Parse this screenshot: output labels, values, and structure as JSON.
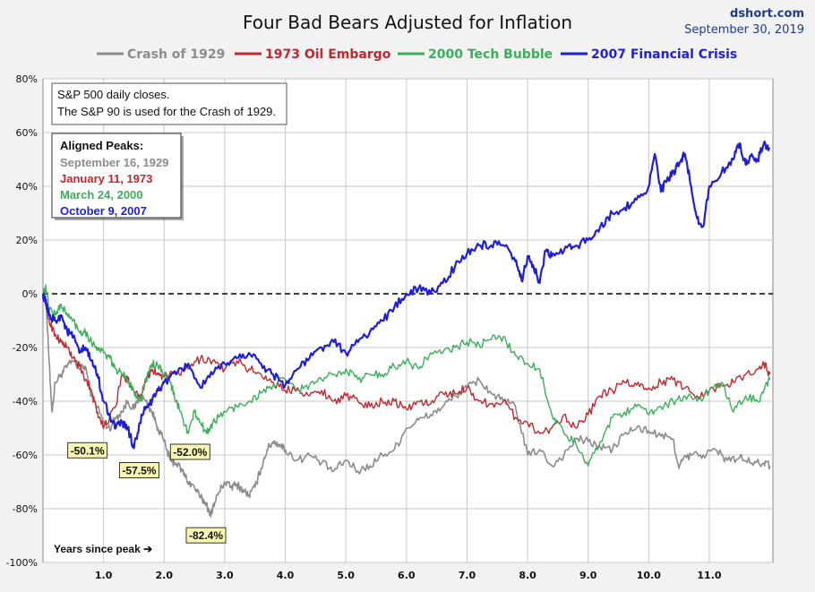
{
  "source": {
    "site": "dshort.com",
    "date": "September 30, 2019"
  },
  "chart_data": {
    "type": "line",
    "title": "Four Bad Bears Adjusted for Inflation",
    "xlabel": "Years since peak ➔",
    "ylabel": "",
    "xlim": [
      0,
      12.05
    ],
    "ylim": [
      -100,
      80
    ],
    "grid": true,
    "legend_position": "top",
    "y_ticks": [
      80,
      60,
      40,
      20,
      0,
      -20,
      -40,
      -60,
      -80,
      -100
    ],
    "y_tick_labels": [
      "80%",
      "60%",
      "40%",
      "20%",
      "0%",
      "-20%",
      "-40%",
      "-60%",
      "-80%",
      "-100%"
    ],
    "x_ticks": [
      1,
      2,
      3,
      4,
      5,
      6,
      7,
      8,
      9,
      10,
      11
    ],
    "x_tick_labels": [
      "1.0",
      "2.0",
      "3.0",
      "4.0",
      "5.0",
      "6.0",
      "7.0",
      "8.0",
      "9.0",
      "10.0",
      "11.0"
    ],
    "note_lines": [
      "S&P 500 daily closes.",
      "The S&P 90 is used for the Crash of 1929."
    ],
    "aligned_peaks": {
      "heading": "Aligned Peaks:",
      "items": [
        {
          "label": "September 16, 1929",
          "color": "#8c8c8c"
        },
        {
          "label": "January 11, 1973",
          "color": "#c0282d"
        },
        {
          "label": "March 24, 2000",
          "color": "#3cae5a"
        },
        {
          "label": "October 9, 2007",
          "color": "#1f1fd6"
        }
      ]
    },
    "series": [
      {
        "name": "Crash of 1929",
        "color": "#8c8c8c",
        "width": 1.6,
        "x": [
          0,
          0.05,
          0.1,
          0.15,
          0.2,
          0.3,
          0.4,
          0.5,
          0.6,
          0.7,
          0.8,
          0.9,
          1.0,
          1.1,
          1.2,
          1.3,
          1.4,
          1.5,
          1.6,
          1.7,
          1.8,
          1.9,
          2.0,
          2.1,
          2.2,
          2.3,
          2.4,
          2.5,
          2.6,
          2.7,
          2.75,
          2.8,
          2.9,
          3.0,
          3.1,
          3.2,
          3.3,
          3.4,
          3.5,
          3.6,
          3.7,
          3.8,
          3.9,
          4.0,
          4.2,
          4.4,
          4.6,
          4.8,
          5.0,
          5.2,
          5.4,
          5.6,
          5.8,
          6.0,
          6.2,
          6.4,
          6.6,
          6.8,
          7.0,
          7.2,
          7.4,
          7.6,
          7.8,
          8.0,
          8.2,
          8.4,
          8.6,
          8.8,
          9.0,
          9.2,
          9.4,
          9.6,
          9.8,
          10.0,
          10.2,
          10.4,
          10.5,
          10.55,
          10.7,
          10.9,
          11.1,
          11.3,
          11.5,
          11.7,
          11.9,
          12.0
        ],
        "y": [
          0,
          -2,
          -25,
          -44,
          -33,
          -30,
          -27,
          -25,
          -28,
          -27,
          -38,
          -42,
          -48,
          -50,
          -46,
          -44,
          -40,
          -43,
          -38,
          -40,
          -44,
          -50,
          -55,
          -62,
          -63,
          -66,
          -70,
          -72,
          -76,
          -78,
          -82.4,
          -80,
          -74,
          -70,
          -72,
          -71,
          -73,
          -75,
          -72,
          -65,
          -58,
          -55,
          -56,
          -58,
          -62,
          -60,
          -63,
          -66,
          -62,
          -66,
          -64,
          -60,
          -58,
          -50,
          -47,
          -45,
          -42,
          -38,
          -35,
          -32,
          -37,
          -40,
          -42,
          -60,
          -58,
          -64,
          -60,
          -54,
          -55,
          -57,
          -58,
          -52,
          -50,
          -51,
          -53,
          -54,
          -65,
          -62,
          -60,
          -60,
          -58,
          -62,
          -61,
          -63,
          -63,
          -64
        ]
      },
      {
        "name": "1973 Oil Embargo",
        "color": "#c0282d",
        "width": 1.4,
        "x": [
          0,
          0.05,
          0.1,
          0.2,
          0.3,
          0.4,
          0.5,
          0.6,
          0.7,
          0.8,
          0.9,
          1.0,
          1.1,
          1.2,
          1.3,
          1.4,
          1.5,
          1.6,
          1.7,
          1.8,
          1.9,
          2.0,
          2.2,
          2.4,
          2.6,
          2.8,
          3.0,
          3.2,
          3.4,
          3.6,
          3.8,
          4.0,
          4.2,
          4.4,
          4.6,
          4.8,
          5.0,
          5.2,
          5.4,
          5.6,
          5.8,
          6.0,
          6.2,
          6.4,
          6.6,
          6.8,
          7.0,
          7.2,
          7.4,
          7.6,
          7.8,
          8.0,
          8.2,
          8.4,
          8.6,
          8.8,
          9.0,
          9.2,
          9.4,
          9.6,
          9.8,
          10.0,
          10.2,
          10.4,
          10.6,
          10.8,
          11.0,
          11.2,
          11.4,
          11.6,
          11.8,
          11.9,
          12.0
        ],
        "y": [
          0,
          -3,
          -10,
          -15,
          -18,
          -20,
          -24,
          -27,
          -32,
          -36,
          -44,
          -50.1,
          -46,
          -42,
          -30,
          -32,
          -36,
          -38,
          -32,
          -28,
          -30,
          -31,
          -30,
          -28,
          -24,
          -25,
          -28,
          -25,
          -28,
          -30,
          -33,
          -36,
          -35,
          -38,
          -36,
          -40,
          -38,
          -40,
          -42,
          -40,
          -40,
          -43,
          -40,
          -41,
          -37,
          -37,
          -35,
          -40,
          -41,
          -40,
          -46,
          -48,
          -52,
          -50,
          -45,
          -50,
          -45,
          -38,
          -36,
          -33,
          -34,
          -35,
          -33,
          -32,
          -35,
          -38,
          -36,
          -34,
          -33,
          -30,
          -28,
          -26,
          -30
        ]
      },
      {
        "name": "2000 Tech Bubble",
        "color": "#3cae5a",
        "width": 1.4,
        "x": [
          0,
          0.05,
          0.1,
          0.2,
          0.3,
          0.4,
          0.5,
          0.6,
          0.7,
          0.8,
          0.9,
          1.0,
          1.1,
          1.2,
          1.3,
          1.4,
          1.5,
          1.6,
          1.7,
          1.8,
          1.9,
          2.0,
          2.1,
          2.2,
          2.3,
          2.4,
          2.5,
          2.6,
          2.7,
          2.8,
          2.9,
          3.0,
          3.2,
          3.4,
          3.6,
          3.8,
          4.0,
          4.2,
          4.4,
          4.6,
          4.8,
          5.0,
          5.2,
          5.4,
          5.6,
          5.8,
          6.0,
          6.2,
          6.4,
          6.6,
          6.8,
          7.0,
          7.2,
          7.4,
          7.6,
          7.8,
          8.0,
          8.2,
          8.4,
          8.6,
          8.8,
          9.0,
          9.2,
          9.4,
          9.6,
          9.8,
          10.0,
          10.2,
          10.4,
          10.6,
          10.8,
          11.0,
          11.2,
          11.4,
          11.6,
          11.8,
          11.9,
          12.0
        ],
        "y": [
          0,
          2,
          -5,
          -8,
          -4,
          -8,
          -10,
          -14,
          -14,
          -18,
          -20,
          -22,
          -24,
          -28,
          -30,
          -32,
          -36,
          -40,
          -32,
          -26,
          -27,
          -30,
          -33,
          -40,
          -46,
          -52,
          -44,
          -48,
          -52,
          -48,
          -46,
          -44,
          -42,
          -40,
          -37,
          -34,
          -32,
          -36,
          -34,
          -32,
          -30,
          -28,
          -32,
          -30,
          -30,
          -27,
          -25,
          -28,
          -22,
          -22,
          -20,
          -18,
          -19,
          -17,
          -16,
          -23,
          -26,
          -28,
          -45,
          -52,
          -56,
          -64,
          -55,
          -46,
          -44,
          -42,
          -45,
          -42,
          -40,
          -38,
          -40,
          -36,
          -33,
          -44,
          -38,
          -40,
          -36,
          -32
        ]
      },
      {
        "name": "2007 Financial Crisis",
        "color": "#1f1fd6",
        "width": 2.2,
        "x": [
          0,
          0.05,
          0.1,
          0.2,
          0.3,
          0.4,
          0.5,
          0.6,
          0.7,
          0.8,
          0.9,
          1.0,
          1.1,
          1.2,
          1.3,
          1.4,
          1.5,
          1.6,
          1.7,
          1.8,
          1.9,
          2.0,
          2.2,
          2.4,
          2.6,
          2.8,
          3.0,
          3.2,
          3.4,
          3.6,
          3.8,
          4.0,
          4.2,
          4.4,
          4.6,
          4.8,
          5.0,
          5.2,
          5.4,
          5.6,
          5.8,
          6.0,
          6.2,
          6.4,
          6.6,
          6.8,
          7.0,
          7.2,
          7.4,
          7.6,
          7.8,
          7.9,
          8.0,
          8.1,
          8.2,
          8.3,
          8.4,
          8.6,
          8.8,
          9.0,
          9.2,
          9.4,
          9.6,
          9.8,
          10.0,
          10.1,
          10.2,
          10.3,
          10.4,
          10.5,
          10.6,
          10.7,
          10.8,
          10.9,
          11.0,
          11.2,
          11.4,
          11.5,
          11.6,
          11.7,
          11.8,
          11.9,
          12.0
        ],
        "y": [
          0,
          -4,
          -8,
          -10,
          -8,
          -14,
          -16,
          -22,
          -20,
          -25,
          -30,
          -40,
          -45,
          -50,
          -48,
          -50,
          -57.5,
          -48,
          -42,
          -40,
          -36,
          -33,
          -30,
          -26,
          -35,
          -30,
          -26,
          -24,
          -22,
          -26,
          -30,
          -34,
          -28,
          -24,
          -20,
          -18,
          -22,
          -18,
          -14,
          -10,
          -5,
          0,
          2,
          0,
          4,
          10,
          15,
          18,
          18,
          18,
          12,
          5,
          14,
          10,
          4,
          16,
          14,
          16,
          18,
          20,
          25,
          30,
          32,
          35,
          40,
          52,
          38,
          42,
          45,
          48,
          52,
          40,
          28,
          25,
          40,
          45,
          50,
          56,
          48,
          52,
          50,
          56,
          54
        ]
      }
    ],
    "annotations": [
      {
        "label": "-50.1%",
        "x": 1.0,
        "y": -50.1
      },
      {
        "label": "-57.5%",
        "x": 1.5,
        "y": -57.5
      },
      {
        "label": "-52.0%",
        "x": 2.4,
        "y": -52.0
      },
      {
        "label": "-82.4%",
        "x": 2.75,
        "y": -82.4
      }
    ]
  }
}
